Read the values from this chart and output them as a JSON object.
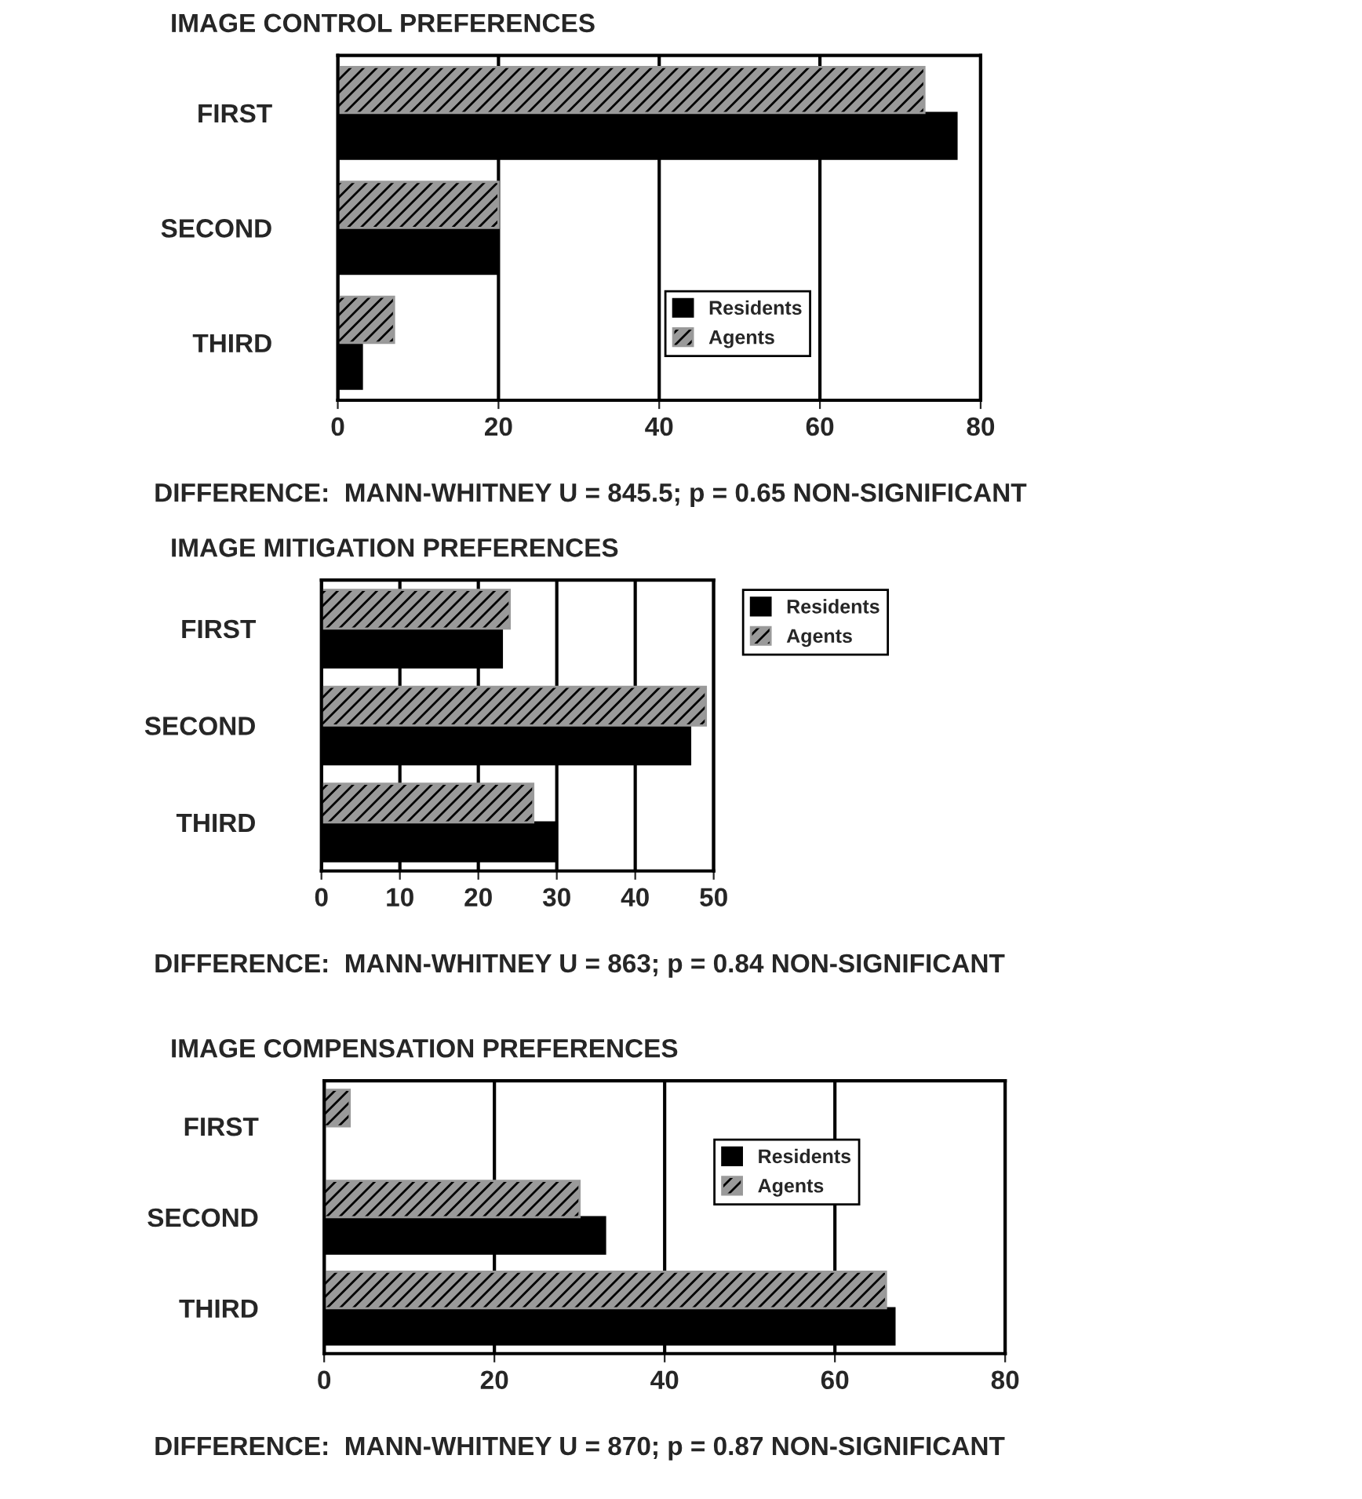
{
  "chart_data": [
    {
      "type": "bar",
      "orientation": "horizontal",
      "title": "IMAGE CONTROL PREFERENCES",
      "categories": [
        "FIRST",
        "SECOND",
        "THIRD"
      ],
      "series": [
        {
          "name": "Residents",
          "color": "#000000",
          "values": [
            77,
            20,
            3
          ]
        },
        {
          "name": "Agents",
          "color": "#9a9a9a",
          "values": [
            73,
            20,
            7
          ]
        }
      ],
      "xlim": [
        0,
        80
      ],
      "xticks": [
        0,
        20,
        40,
        60,
        80
      ],
      "grid": "x",
      "legend": "bottom right",
      "annotations": [
        "DIFFERENCE:  MANN-WHITNEY U = 845.5; p = 0.65 NON-SIGNIFICANT"
      ]
    },
    {
      "type": "bar",
      "orientation": "horizontal",
      "title": "IMAGE MITIGATION PREFERENCES",
      "categories": [
        "FIRST",
        "SECOND",
        "THIRD"
      ],
      "series": [
        {
          "name": "Residents",
          "color": "#000000",
          "values": [
            23,
            47,
            30
          ]
        },
        {
          "name": "Agents",
          "color": "#9a9a9a",
          "values": [
            24,
            49,
            27
          ]
        }
      ],
      "xlim": [
        0,
        50
      ],
      "xticks": [
        0,
        10,
        20,
        30,
        40,
        50
      ],
      "grid": "x",
      "legend": "right",
      "annotations": [
        "DIFFERENCE:  MANN-WHITNEY U = 863; p = 0.84 NON-SIGNIFICANT"
      ]
    },
    {
      "type": "bar",
      "orientation": "horizontal",
      "title": "IMAGE COMPENSATION PREFERENCES",
      "categories": [
        "FIRST",
        "SECOND",
        "THIRD"
      ],
      "series": [
        {
          "name": "Residents",
          "color": "#000000",
          "values": [
            0,
            33,
            67
          ]
        },
        {
          "name": "Agents",
          "color": "#9a9a9a",
          "values": [
            3,
            30,
            66
          ]
        }
      ],
      "xlim": [
        0,
        80
      ],
      "xticks": [
        0,
        20,
        40,
        60,
        80
      ],
      "grid": "x",
      "legend": "top right",
      "annotations": [
        "DIFFERENCE:  MANN-WHITNEY U = 870; p = 0.87 NON-SIGNIFICANT"
      ]
    }
  ]
}
